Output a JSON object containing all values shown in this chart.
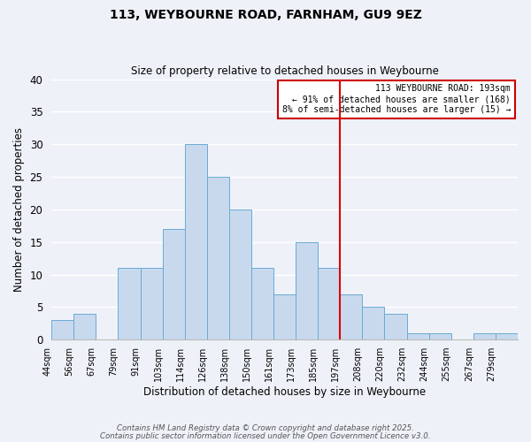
{
  "title": "113, WEYBOURNE ROAD, FARNHAM, GU9 9EZ",
  "subtitle": "Size of property relative to detached houses in Weybourne",
  "xlabel": "Distribution of detached houses by size in Weybourne",
  "ylabel": "Number of detached properties",
  "bin_labels": [
    "44sqm",
    "56sqm",
    "67sqm",
    "79sqm",
    "91sqm",
    "103sqm",
    "114sqm",
    "126sqm",
    "138sqm",
    "150sqm",
    "161sqm",
    "173sqm",
    "185sqm",
    "197sqm",
    "208sqm",
    "220sqm",
    "232sqm",
    "244sqm",
    "255sqm",
    "267sqm",
    "279sqm"
  ],
  "counts": [
    3,
    4,
    0,
    11,
    11,
    17,
    30,
    25,
    20,
    11,
    7,
    15,
    11,
    7,
    5,
    4,
    1,
    1,
    0,
    1,
    1
  ],
  "bar_color": "#c8d9ee",
  "bar_edge_color": "#6aaad4",
  "vline_bin_index": 13,
  "vline_color": "#dd0000",
  "ylim": [
    0,
    40
  ],
  "yticks": [
    0,
    5,
    10,
    15,
    20,
    25,
    30,
    35,
    40
  ],
  "legend_title": "113 WEYBOURNE ROAD: 193sqm",
  "legend_line1": "← 91% of detached houses are smaller (168)",
  "legend_line2": "8% of semi-detached houses are larger (15) →",
  "footer1": "Contains HM Land Registry data © Crown copyright and database right 2025.",
  "footer2": "Contains public sector information licensed under the Open Government Licence v3.0.",
  "background_color": "#eef2f8",
  "grid_color": "#ffffff"
}
